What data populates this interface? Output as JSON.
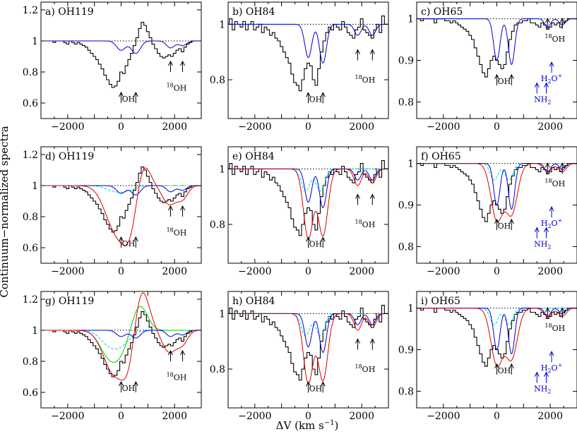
{
  "figure": {
    "ylabel": "Continuum−normalized spectra",
    "xlabel_main": "ΔV (km s",
    "xlabel_exp": "−1",
    "xlabel_end": ")"
  },
  "colors": {
    "observed": "#000000",
    "model_blue": "#0000cc",
    "model_cyan": "#00d8e8",
    "model_red": "#dd0000",
    "model_green": "#00cc00",
    "annotation_blue": "#0000cc",
    "continuum": "#000000"
  },
  "chart_data": [
    {
      "type": "line",
      "panel": "a",
      "title": "a) OH119",
      "transition": "OH119",
      "xlim": [
        -3000,
        3000
      ],
      "ylim": [
        0.5,
        1.25
      ],
      "xticks": [
        -2000,
        0,
        2000
      ],
      "yticks": [
        0.6,
        0.8,
        1,
        1.2
      ],
      "yticklabels": [
        "0.6",
        "0.8",
        "1",
        "1.2"
      ],
      "model": "a_model",
      "components": [
        "blue"
      ],
      "labels": {
        "oh": "OH",
        "o18_pre": "18",
        "o18": "OH"
      },
      "species": "ohA"
    },
    {
      "type": "line",
      "panel": "b",
      "title": "b) OH84",
      "transition": "OH84",
      "xlim": [
        -3000,
        3000
      ],
      "ylim": [
        0.66,
        1.08
      ],
      "xticks": [
        -2000,
        0,
        2000
      ],
      "yticks": [
        0.8,
        1
      ],
      "yticklabels": [
        "0.8",
        "1"
      ],
      "model": "b_model",
      "components": [
        "blue"
      ],
      "labels": {
        "oh": "OH",
        "o18_pre": "18",
        "o18": "OH"
      },
      "species": "ohB"
    },
    {
      "type": "line",
      "panel": "c",
      "title": "c) OH65",
      "transition": "OH65",
      "xlim": [
        -3000,
        3000
      ],
      "ylim": [
        0.76,
        1.04
      ],
      "xticks": [
        -2000,
        0,
        2000
      ],
      "yticks": [
        0.8,
        0.9,
        1
      ],
      "yticklabels": [
        "0.8",
        "0.9",
        "1"
      ],
      "model": "c_model",
      "components": [
        "blue"
      ],
      "labels": {
        "oh": "OH",
        "o18_pre": "18",
        "o18": "OH",
        "h2o": "H",
        "h2o_sub": "2",
        "h2o_end": "O",
        "h2o_sup": "+",
        "nh2": "NH",
        "nh2_sub": "2"
      },
      "species": "ohC"
    },
    {
      "type": "line",
      "panel": "d",
      "title": "d) OH119",
      "transition": "OH119",
      "xlim": [
        -3000,
        3000
      ],
      "ylim": [
        0.5,
        1.25
      ],
      "xticks": [
        -2000,
        0,
        2000
      ],
      "yticks": [
        0.6,
        0.8,
        1,
        1.2
      ],
      "yticklabels": [
        "0.6",
        "0.8",
        "1",
        "1.2"
      ],
      "model": "d_model",
      "components": [
        "blue",
        "cyan",
        "red"
      ],
      "labels": {
        "oh": "OH",
        "o18_pre": "18",
        "o18": "OH"
      },
      "species": "ohA"
    },
    {
      "type": "line",
      "panel": "e",
      "title": "e) OH84",
      "transition": "OH84",
      "xlim": [
        -3000,
        3000
      ],
      "ylim": [
        0.66,
        1.08
      ],
      "xticks": [
        -2000,
        0,
        2000
      ],
      "yticks": [
        0.8,
        1
      ],
      "yticklabels": [
        "0.8",
        "1"
      ],
      "model": "e_model",
      "components": [
        "blue",
        "cyan",
        "red"
      ],
      "labels": {
        "oh": "OH",
        "o18_pre": "18",
        "o18": "OH"
      },
      "species": "ohB"
    },
    {
      "type": "line",
      "panel": "f",
      "title": "f) OH65",
      "transition": "OH65",
      "xlim": [
        -3000,
        3000
      ],
      "ylim": [
        0.76,
        1.04
      ],
      "xticks": [
        -2000,
        0,
        2000
      ],
      "yticks": [
        0.8,
        0.9,
        1
      ],
      "yticklabels": [
        "0.8",
        "0.9",
        "1"
      ],
      "model": "f_model",
      "components": [
        "blue",
        "cyan",
        "red"
      ],
      "labels": {
        "oh": "OH",
        "o18_pre": "18",
        "o18": "OH",
        "h2o": "H",
        "h2o_sub": "2",
        "h2o_end": "O",
        "h2o_sup": "+",
        "nh2": "NH",
        "nh2_sub": "2"
      },
      "species": "ohC"
    },
    {
      "type": "line",
      "panel": "g",
      "title": "g) OH119",
      "transition": "OH119",
      "xlim": [
        -3000,
        3000
      ],
      "ylim": [
        0.5,
        1.25
      ],
      "xticks": [
        -2000,
        0,
        2000
      ],
      "yticks": [
        0.6,
        0.8,
        1,
        1.2
      ],
      "yticklabels": [
        "0.6",
        "0.8",
        "1",
        "1.2"
      ],
      "model": "g_model",
      "components": [
        "blue",
        "cyan",
        "green",
        "red"
      ],
      "labels": {
        "oh": "OH",
        "o18_pre": "18",
        "o18": "OH"
      },
      "species": "ohA"
    },
    {
      "type": "line",
      "panel": "h",
      "title": "h) OH84",
      "transition": "OH84",
      "xlim": [
        -3000,
        3000
      ],
      "ylim": [
        0.66,
        1.08
      ],
      "xticks": [
        -2000,
        0,
        2000
      ],
      "yticks": [
        0.8,
        1
      ],
      "yticklabels": [
        "0.8",
        "1"
      ],
      "model": "h_model",
      "components": [
        "blue",
        "cyan",
        "red"
      ],
      "labels": {
        "oh": "OH",
        "o18_pre": "18",
        "o18": "OH"
      },
      "species": "ohB"
    },
    {
      "type": "line",
      "panel": "i",
      "title": "i) OH65",
      "transition": "OH65",
      "xlim": [
        -3000,
        3000
      ],
      "ylim": [
        0.76,
        1.04
      ],
      "xticks": [
        -2000,
        0,
        2000
      ],
      "yticks": [
        0.8,
        0.9,
        1
      ],
      "yticklabels": [
        "0.8",
        "0.9",
        "1"
      ],
      "model": "i_model",
      "components": [
        "blue",
        "cyan",
        "red"
      ],
      "labels": {
        "oh": "OH",
        "o18_pre": "18",
        "o18": "OH",
        "h2o": "H",
        "h2o_sub": "2",
        "h2o_end": "O",
        "h2o_sup": "+",
        "nh2": "NH",
        "nh2_sub": "2"
      },
      "species": "ohC"
    }
  ],
  "observed_spectra": {
    "OH119": {
      "step": 100,
      "x0": -3000,
      "y": [
        1.0,
        1.0,
        1.0,
        1.0,
        1.0,
        0.99,
        1.0,
        1.0,
        1.0,
        0.99,
        0.98,
        1.0,
        0.99,
        0.98,
        0.99,
        0.98,
        0.97,
        0.96,
        0.94,
        0.92,
        0.9,
        0.88,
        0.85,
        0.82,
        0.78,
        0.75,
        0.72,
        0.7,
        0.71,
        0.74,
        0.8,
        0.79,
        0.84,
        0.88,
        0.92,
        0.97,
        1.02,
        1.08,
        1.12,
        1.1,
        1.06,
        1.02,
        0.98,
        0.95,
        0.92,
        0.9,
        0.89,
        0.9,
        0.91,
        0.9,
        0.92,
        0.94,
        0.95,
        0.93,
        0.96,
        0.98,
        0.99,
        1.0,
        1.0,
        1.0,
        1.0
      ]
    },
    "OH84": {
      "step": 100,
      "x0": -3000,
      "y": [
        1.0,
        1.02,
        0.98,
        1.01,
        1.0,
        0.99,
        1.01,
        0.98,
        1.0,
        1.01,
        0.98,
        0.99,
        1.0,
        0.97,
        0.99,
        0.98,
        0.96,
        0.97,
        0.95,
        0.94,
        0.92,
        0.9,
        0.88,
        0.86,
        0.82,
        0.79,
        0.78,
        0.76,
        0.8,
        0.84,
        0.86,
        0.85,
        0.8,
        0.78,
        0.84,
        0.9,
        0.94,
        0.97,
        0.99,
        0.98,
        1.0,
        0.99,
        0.98,
        1.01,
        0.99,
        0.97,
        0.96,
        0.95,
        0.98,
        0.99,
        1.02,
        0.98,
        0.97,
        0.96,
        0.95,
        0.98,
        1.0,
        0.97,
        1.03,
        1.0,
        1.0
      ]
    },
    "OH65": {
      "step": 100,
      "x0": -3000,
      "y": [
        1.0,
        1.0,
        0.995,
        1.0,
        1.0,
        1.0,
        1.0,
        0.99,
        1.0,
        1.0,
        1.0,
        0.995,
        0.995,
        0.99,
        0.995,
        0.99,
        0.985,
        0.98,
        0.975,
        0.97,
        0.96,
        0.95,
        0.93,
        0.91,
        0.89,
        0.87,
        0.86,
        0.88,
        0.9,
        0.91,
        0.9,
        0.89,
        0.88,
        0.89,
        0.92,
        0.95,
        0.97,
        0.985,
        0.99,
        0.99,
        0.995,
        0.995,
        1.0,
        0.99,
        0.99,
        0.985,
        0.98,
        0.99,
        0.985,
        0.975,
        0.98,
        0.99,
        0.985,
        0.99,
        0.98,
        0.99,
        0.995,
        1.0,
        1.0,
        1.0,
        1.0
      ]
    }
  },
  "models": {
    "a_model": {
      "blue": {
        "depth": [
          0.06,
          0.08,
          0.045,
          0.03
        ],
        "centers": [
          0,
          550,
          1850,
          2300
        ],
        "width": [
          170,
          170,
          150,
          150
        ]
      }
    },
    "b_model": {
      "blue": {
        "depth": [
          0.12,
          0.14,
          0.04,
          0.04
        ],
        "centers": [
          0,
          550,
          1850,
          2400
        ],
        "width": [
          130,
          130,
          120,
          120
        ]
      }
    },
    "c_model": {
      "blue": {
        "depth": [
          0.1,
          0.11,
          0.02,
          0.015
        ],
        "centers": [
          0,
          550,
          1900,
          2450
        ],
        "width": [
          120,
          120,
          110,
          110
        ]
      }
    },
    "d_model": {
      "blue": {
        "depth": [
          0.05,
          0.06,
          0.04,
          0.03
        ],
        "centers": [
          0,
          550,
          1850,
          2300
        ],
        "width": [
          170,
          170,
          150,
          150
        ]
      },
      "cyan": {
        "depth": [
          0.03,
          0.03
        ],
        "centers": [
          -300,
          200
        ],
        "width": [
          300,
          300
        ]
      },
      "red": {
        "depth": [
          0.28,
          0.25,
          0.12,
          0.08
        ],
        "centers": [
          -200,
          350,
          1800,
          2300
        ],
        "width": [
          400,
          300,
          250,
          200
        ],
        "emission": [
          0.18,
          800,
          250
        ]
      }
    },
    "e_model": {
      "blue": {
        "depth": [
          0.12,
          0.14,
          0.04,
          0.04
        ],
        "centers": [
          0,
          550,
          1850,
          2400
        ],
        "width": [
          130,
          130,
          120,
          120
        ]
      },
      "cyan": {
        "depth": [
          0.08,
          0.08
        ],
        "centers": [
          -100,
          450
        ],
        "width": [
          160,
          160
        ]
      },
      "red": {
        "depth": [
          0.25,
          0.24,
          0.06,
          0.05
        ],
        "centers": [
          0,
          550,
          1850,
          2400
        ],
        "width": [
          180,
          180,
          140,
          140
        ]
      }
    },
    "f_model": {
      "blue": {
        "depth": [
          0.1,
          0.11,
          0.02,
          0.015
        ],
        "centers": [
          0,
          550,
          1900,
          2450
        ],
        "width": [
          120,
          120,
          110,
          110
        ]
      },
      "cyan": {
        "depth": [
          0.04,
          0.04
        ],
        "centers": [
          -100,
          450
        ],
        "width": [
          150,
          150
        ]
      },
      "red": {
        "depth": [
          0.135,
          0.12,
          0.02,
          0.02
        ],
        "centers": [
          0,
          550,
          1900,
          2450
        ],
        "width": [
          220,
          220,
          150,
          150
        ]
      }
    },
    "g_model": {
      "blue": {
        "depth": [
          0.04,
          0.05,
          0.04,
          0.03
        ],
        "centers": [
          0,
          550,
          1850,
          2300
        ],
        "width": [
          170,
          170,
          150,
          150
        ]
      },
      "cyan": {
        "depth": [
          0.1,
          0.06
        ],
        "centers": [
          -400,
          100
        ],
        "width": [
          350,
          300
        ]
      },
      "green": {
        "depth": [
          0.16,
          0.1
        ],
        "centers": [
          -450,
          0
        ],
        "width": [
          350,
          300
        ],
        "emission": [
          0.16,
          700,
          280
        ]
      },
      "red": {
        "depth": [
          0.28,
          0.2,
          0.14,
          0.08
        ],
        "centers": [
          -250,
          300,
          1800,
          2300
        ],
        "width": [
          400,
          250,
          260,
          200
        ],
        "emission": [
          0.28,
          750,
          280
        ]
      }
    },
    "h_model": {
      "blue": {
        "depth": [
          0.12,
          0.14,
          0.04,
          0.04
        ],
        "centers": [
          0,
          550,
          1850,
          2400
        ],
        "width": [
          130,
          130,
          120,
          120
        ]
      },
      "cyan": {
        "depth": [
          0.08,
          0.08
        ],
        "centers": [
          -100,
          450
        ],
        "width": [
          160,
          160
        ]
      },
      "red": {
        "depth": [
          0.25,
          0.24,
          0.06,
          0.05
        ],
        "centers": [
          0,
          550,
          1850,
          2400
        ],
        "width": [
          180,
          180,
          140,
          140
        ]
      }
    },
    "i_model": {
      "blue": {
        "depth": [
          0.1,
          0.11,
          0.02,
          0.015
        ],
        "centers": [
          0,
          550,
          1900,
          2450
        ],
        "width": [
          120,
          120,
          110,
          110
        ]
      },
      "cyan": {
        "depth": [
          0.04,
          0.04
        ],
        "centers": [
          -100,
          450
        ],
        "width": [
          150,
          150
        ]
      },
      "red": {
        "depth": [
          0.135,
          0.12,
          0.02,
          0.02
        ],
        "centers": [
          0,
          550,
          1900,
          2450
        ],
        "width": [
          220,
          220,
          150,
          150
        ]
      }
    }
  },
  "annotations": {
    "ohA": {
      "oh_x": [
        0,
        550
      ],
      "oh_y": 0.6,
      "o18_x": [
        1850,
        2300
      ],
      "o18_y": 0.8,
      "o18_text_y": 0.68
    },
    "ohB": {
      "oh_x": [
        0,
        550
      ],
      "oh_y": 0.715,
      "o18_x": [
        1850,
        2400
      ],
      "o18_y": 0.87,
      "o18_text_y": 0.79
    },
    "ohC": {
      "oh_x": [
        0,
        550
      ],
      "oh_y": 0.84,
      "o18_x": [
        1900,
        2450
      ],
      "o18_y": 0.975,
      "o18_text_y": 0.945,
      "h2o_x": [
        2050,
        1750
      ],
      "h2o_text": 0.87,
      "nh2_x": [
        1500,
        1850
      ],
      "nh2_text": 0.82
    }
  }
}
